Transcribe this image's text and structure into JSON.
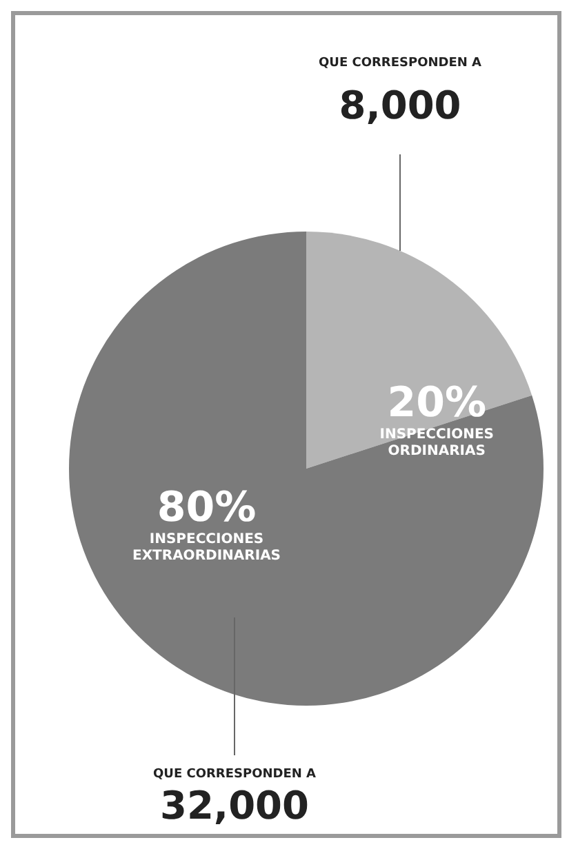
{
  "chart_data": {
    "type": "pie",
    "categories": [
      "INSPECCIONES ORDINARIAS",
      "INSPECCIONES EXTRAORDINARIAS"
    ],
    "values": [
      20,
      80
    ],
    "value_labels": [
      "20%",
      "80%"
    ],
    "colors": [
      "#b5b5b5",
      "#7b7b7b"
    ],
    "annotations": [
      "QUE CORRESPONDEN A\n8,000",
      "QUE CORRESPONDEN A\n32,000"
    ],
    "legend": false
  }
}
